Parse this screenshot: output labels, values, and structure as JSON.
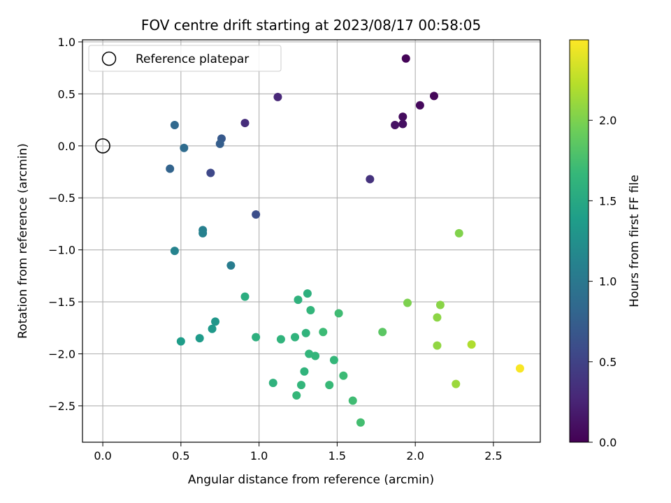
{
  "chart_data": {
    "type": "scatter",
    "title": "FOV centre drift starting at 2023/08/17 00:58:05",
    "xlabel": "Angular distance from reference (arcmin)",
    "ylabel": "Rotation from reference (arcmin)",
    "xlim": [
      -0.13,
      2.8
    ],
    "ylim": [
      -2.85,
      1.02
    ],
    "xticks": [
      0.0,
      0.5,
      1.0,
      1.5,
      2.0,
      2.5
    ],
    "yticks": [
      1.0,
      0.5,
      0.0,
      -0.5,
      -1.0,
      -1.5,
      -2.0,
      -2.5
    ],
    "xtick_labels": [
      "0.0",
      "0.5",
      "1.0",
      "1.5",
      "2.0",
      "2.5"
    ],
    "ytick_labels": [
      "1.0",
      "0.5",
      "0.0",
      "−0.5",
      "−1.0",
      "−1.5",
      "−2.0",
      "−2.5"
    ],
    "grid": true,
    "legend": {
      "location": "top-left",
      "entries": [
        "Reference platepar"
      ]
    },
    "reference_point": {
      "x": 0.0,
      "y": 0.0,
      "label": "Reference platepar"
    },
    "colorbar": {
      "label": "Hours from first FF file",
      "range": [
        0.0,
        2.5
      ],
      "ticks": [
        0.0,
        0.5,
        1.0,
        1.5,
        2.0
      ],
      "tick_labels": [
        "0.0",
        "0.5",
        "1.0",
        "1.5",
        "2.0"
      ],
      "colormap": [
        "#440154",
        "#482878",
        "#3e4989",
        "#31688e",
        "#26828e",
        "#1f9e89",
        "#35b779",
        "#6ece58",
        "#b5de2b",
        "#fde725"
      ]
    },
    "points": [
      {
        "x": 1.94,
        "y": 0.84,
        "t": 0.02
      },
      {
        "x": 2.12,
        "y": 0.48,
        "t": 0.04
      },
      {
        "x": 2.03,
        "y": 0.39,
        "t": 0.06
      },
      {
        "x": 1.92,
        "y": 0.28,
        "t": 0.08
      },
      {
        "x": 1.92,
        "y": 0.21,
        "t": 0.1
      },
      {
        "x": 1.87,
        "y": 0.2,
        "t": 0.12
      },
      {
        "x": 1.12,
        "y": 0.47,
        "t": 0.28
      },
      {
        "x": 0.91,
        "y": 0.22,
        "t": 0.32
      },
      {
        "x": 1.71,
        "y": -0.32,
        "t": 0.36
      },
      {
        "x": 0.69,
        "y": -0.26,
        "t": 0.55
      },
      {
        "x": 0.98,
        "y": -0.66,
        "t": 0.6
      },
      {
        "x": 0.76,
        "y": 0.07,
        "t": 0.7
      },
      {
        "x": 0.75,
        "y": 0.02,
        "t": 0.74
      },
      {
        "x": 0.43,
        "y": -0.22,
        "t": 0.8
      },
      {
        "x": 0.46,
        "y": 0.2,
        "t": 0.84
      },
      {
        "x": 0.52,
        "y": -0.02,
        "t": 0.88
      },
      {
        "x": 0.64,
        "y": -0.81,
        "t": 1.08
      },
      {
        "x": 0.64,
        "y": -0.84,
        "t": 1.1
      },
      {
        "x": 0.46,
        "y": -1.01,
        "t": 1.12
      },
      {
        "x": 0.82,
        "y": -1.15,
        "t": 1.05
      },
      {
        "x": 0.72,
        "y": -1.69,
        "t": 1.32
      },
      {
        "x": 0.7,
        "y": -1.76,
        "t": 1.34
      },
      {
        "x": 0.62,
        "y": -1.85,
        "t": 1.36
      },
      {
        "x": 0.5,
        "y": -1.88,
        "t": 1.38
      },
      {
        "x": 0.91,
        "y": -1.45,
        "t": 1.55
      },
      {
        "x": 0.98,
        "y": -1.84,
        "t": 1.58
      },
      {
        "x": 1.14,
        "y": -1.86,
        "t": 1.62
      },
      {
        "x": 1.23,
        "y": -1.84,
        "t": 1.62
      },
      {
        "x": 1.25,
        "y": -1.48,
        "t": 1.6
      },
      {
        "x": 1.31,
        "y": -1.42,
        "t": 1.58
      },
      {
        "x": 1.33,
        "y": -1.58,
        "t": 1.64
      },
      {
        "x": 1.3,
        "y": -1.8,
        "t": 1.62
      },
      {
        "x": 1.32,
        "y": -2.0,
        "t": 1.64
      },
      {
        "x": 1.36,
        "y": -2.02,
        "t": 1.64
      },
      {
        "x": 1.29,
        "y": -2.17,
        "t": 1.62
      },
      {
        "x": 1.27,
        "y": -2.3,
        "t": 1.64
      },
      {
        "x": 1.24,
        "y": -2.4,
        "t": 1.66
      },
      {
        "x": 1.09,
        "y": -2.28,
        "t": 1.6
      },
      {
        "x": 1.41,
        "y": -1.79,
        "t": 1.7
      },
      {
        "x": 1.48,
        "y": -2.06,
        "t": 1.66
      },
      {
        "x": 1.45,
        "y": -2.3,
        "t": 1.68
      },
      {
        "x": 1.51,
        "y": -1.61,
        "t": 1.72
      },
      {
        "x": 1.54,
        "y": -2.21,
        "t": 1.7
      },
      {
        "x": 1.6,
        "y": -2.45,
        "t": 1.72
      },
      {
        "x": 1.65,
        "y": -2.66,
        "t": 1.74
      },
      {
        "x": 1.79,
        "y": -1.79,
        "t": 1.85
      },
      {
        "x": 1.95,
        "y": -1.51,
        "t": 2.0
      },
      {
        "x": 2.16,
        "y": -1.53,
        "t": 2.05
      },
      {
        "x": 2.14,
        "y": -1.65,
        "t": 2.06
      },
      {
        "x": 2.14,
        "y": -1.92,
        "t": 2.08
      },
      {
        "x": 2.28,
        "y": -0.84,
        "t": 2.02
      },
      {
        "x": 2.26,
        "y": -2.29,
        "t": 2.12
      },
      {
        "x": 2.36,
        "y": -1.91,
        "t": 2.2
      },
      {
        "x": 2.67,
        "y": -2.14,
        "t": 2.48
      }
    ]
  }
}
